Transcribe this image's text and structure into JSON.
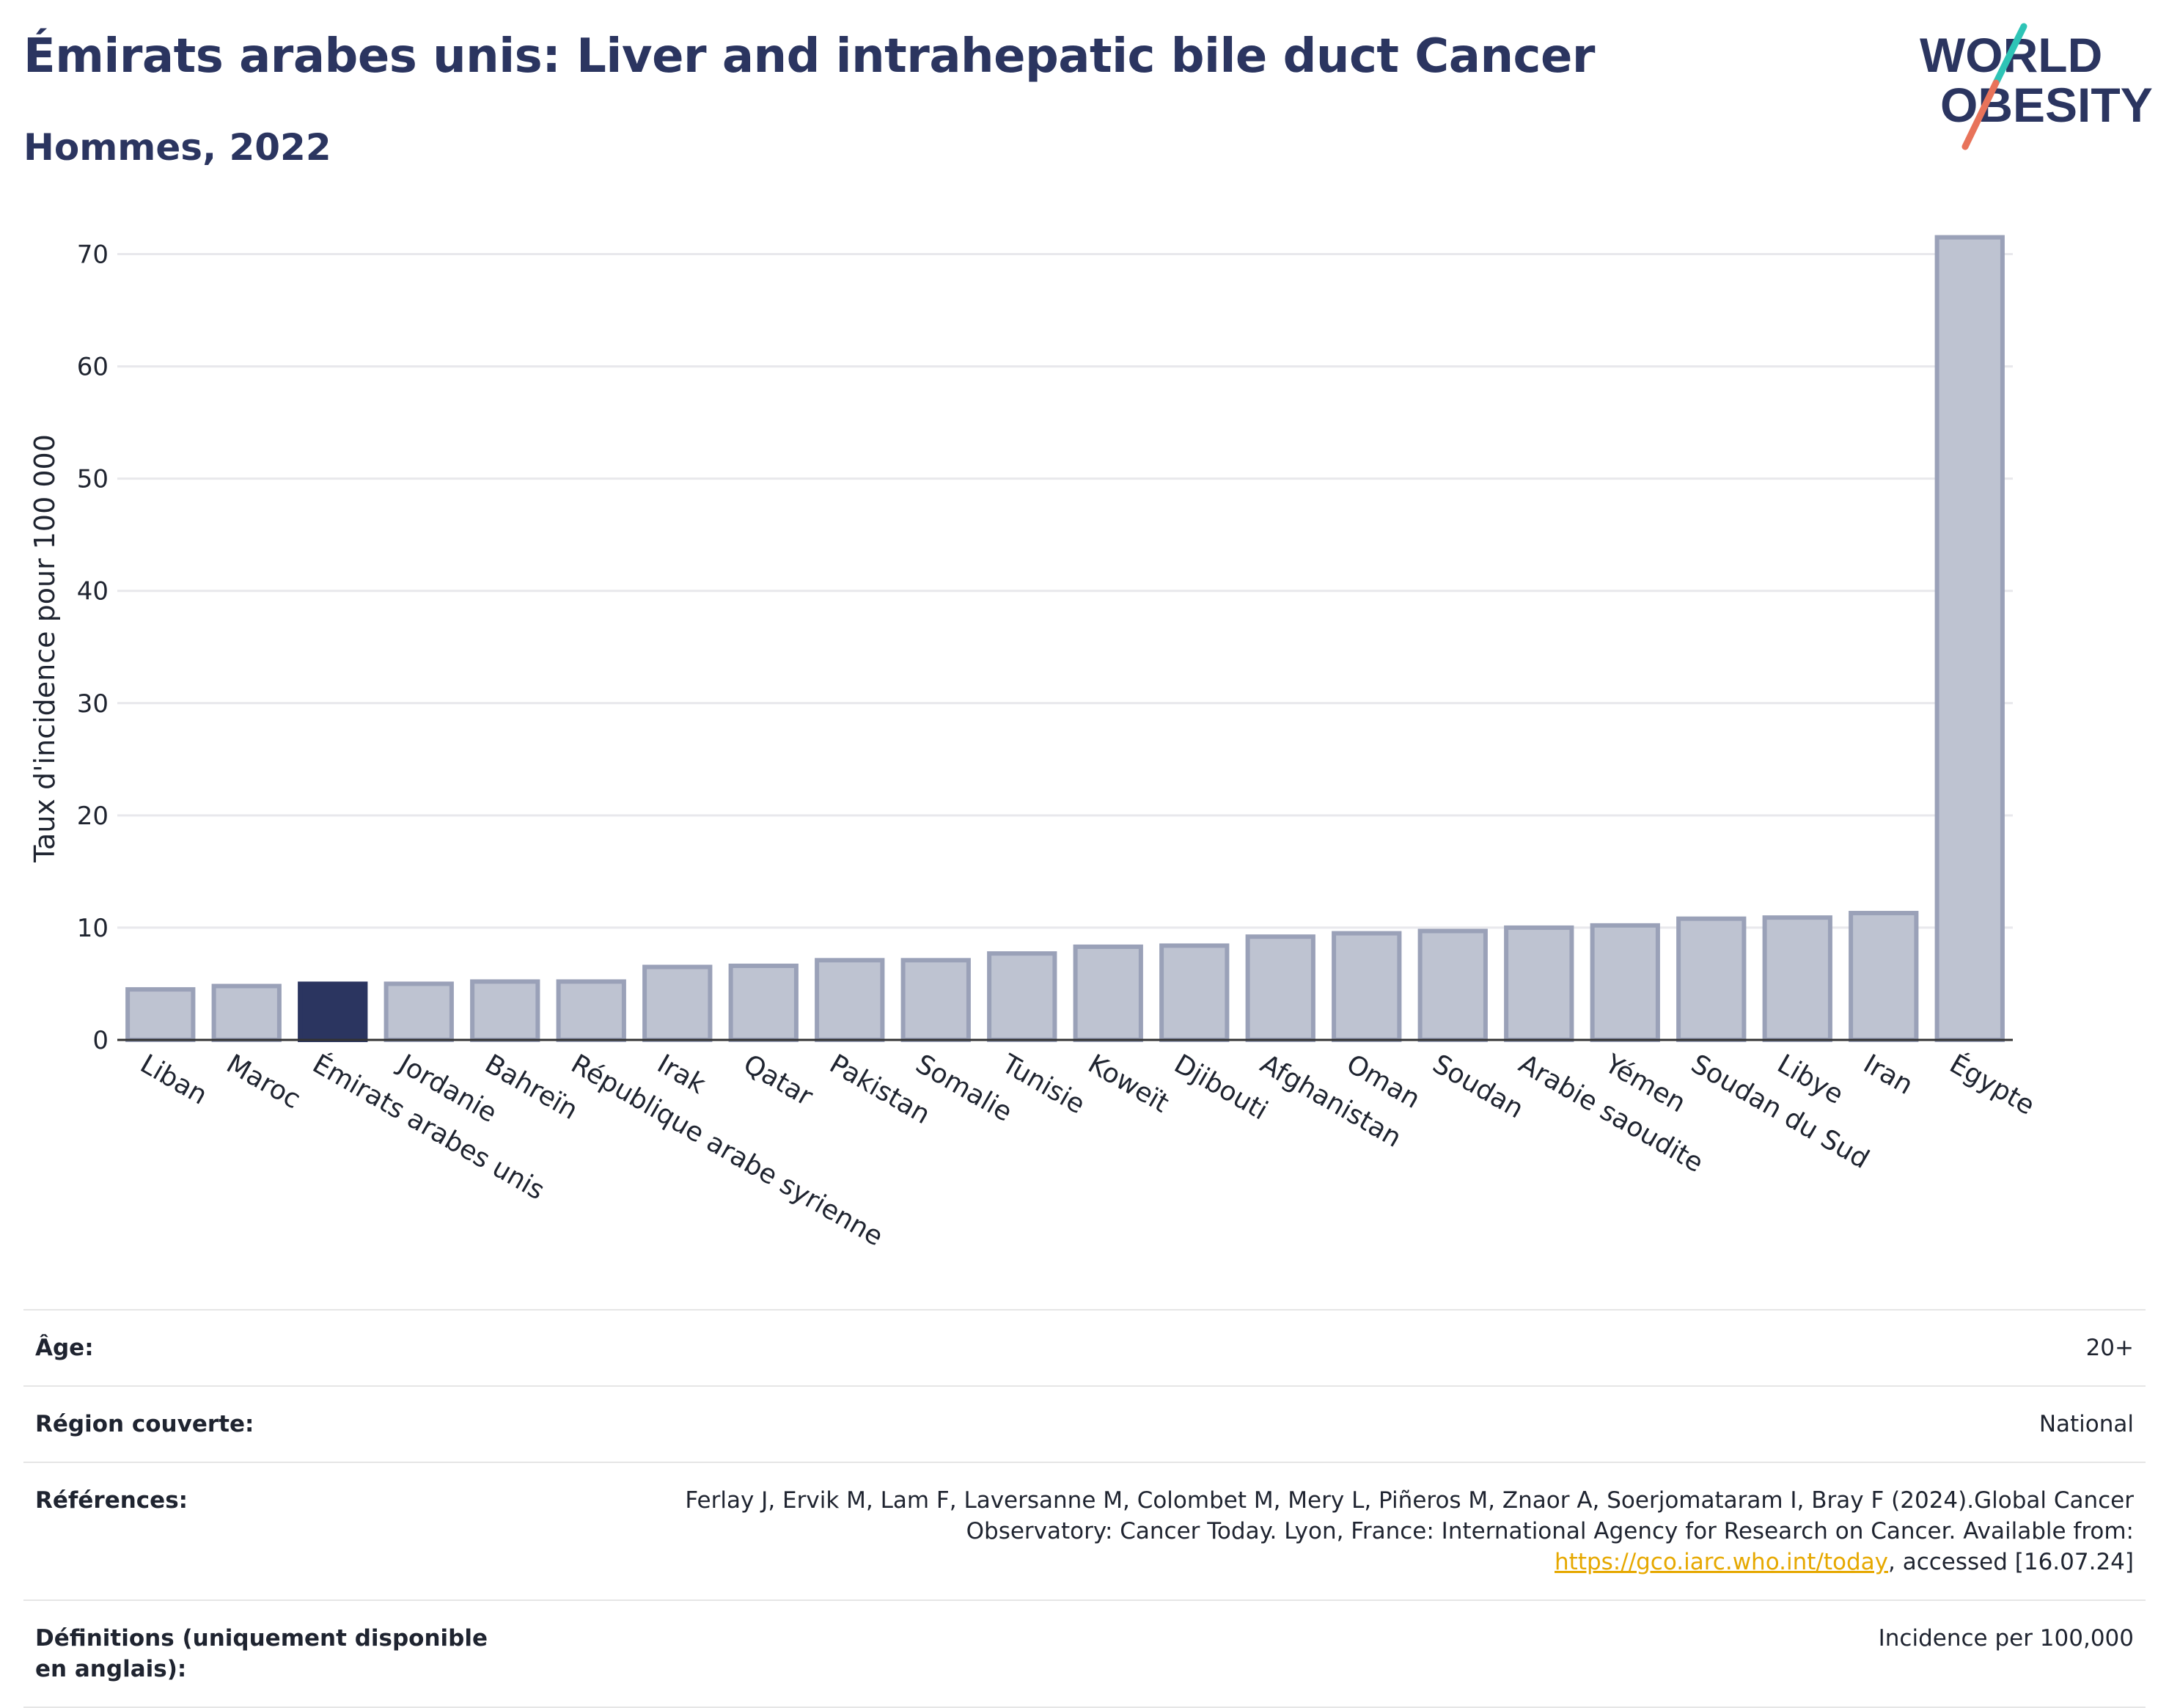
{
  "header": {
    "title": "Émirats arabes unis: Liver and intrahepatic bile duct Cancer",
    "subtitle": "Hommes, 2022"
  },
  "logo": {
    "line1": "WORLD",
    "line2": "OBESITY",
    "colors": {
      "text": "#2b3560",
      "slash_top": "#2ec4b6",
      "slash_bottom": "#e8735a"
    }
  },
  "chart_data": {
    "type": "bar",
    "title": "Émirats arabes unis: Liver and intrahepatic bile duct Cancer",
    "subtitle": "Hommes, 2022",
    "ylabel": "Taux d'incidence pour 100 000",
    "xlabel": "",
    "ylim": [
      0,
      75
    ],
    "yticks": [
      0,
      10,
      20,
      30,
      40,
      50,
      60,
      70
    ],
    "grid": true,
    "highlight": "Émirats arabes unis",
    "colors": {
      "default": "#bec3d1",
      "default_stroke": "#9aa1b8",
      "highlight": "#2b3560"
    },
    "categories": [
      "Liban",
      "Maroc",
      "Émirats arabes unis",
      "Jordanie",
      "Bahreïn",
      "République arabe syrienne",
      "Irak",
      "Qatar",
      "Pakistan",
      "Somalie",
      "Tunisie",
      "Koweït",
      "Djibouti",
      "Afghanistan",
      "Oman",
      "Soudan",
      "Arabie saoudite",
      "Yémen",
      "Soudan du Sud",
      "Libye",
      "Iran",
      "Égypte"
    ],
    "values": [
      4.5,
      4.8,
      5.0,
      5.0,
      5.2,
      5.2,
      6.5,
      6.6,
      7.1,
      7.1,
      7.7,
      8.3,
      8.4,
      9.2,
      9.5,
      9.7,
      10.0,
      10.2,
      10.8,
      10.9,
      11.3,
      71.5
    ]
  },
  "info": {
    "rows": [
      {
        "label": "Âge:",
        "value": "20+"
      },
      {
        "label": "Région couverte:",
        "value": "National"
      },
      {
        "label": "Références:",
        "value_pre": "Ferlay J, Ervik M, Lam F, Laversanne M, Colombet M, Mery L, Piñeros M, Znaor A, Soerjomataram I, Bray F (2024).Global Cancer Observatory: Cancer Today. Lyon, France: International Agency for Research on Cancer. Available from: ",
        "link": "https://gco.iarc.who.int/today",
        "value_post": ", accessed [16.07.24]"
      },
      {
        "label": "Définitions (uniquement disponible en anglais):",
        "value": "Incidence per 100,000"
      }
    ]
  }
}
